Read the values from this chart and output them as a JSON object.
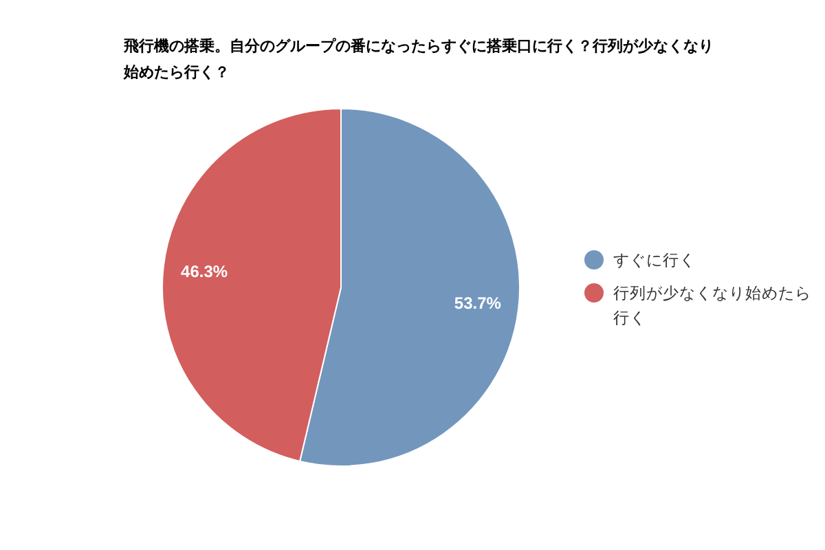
{
  "chart_data": {
    "type": "pie",
    "title": "飛行機の搭乗。自分のグループの番になったらすぐに搭乗口に行く？行列が少なくなり始めたら行く？",
    "categories": [
      "すぐに行く",
      "行列が少なくなり始めたら行く"
    ],
    "values": [
      53.7,
      46.3
    ],
    "colors": [
      "#7396bd",
      "#d35e5e"
    ],
    "value_labels": [
      "53.7%",
      "46.3%"
    ],
    "legend": "right"
  }
}
